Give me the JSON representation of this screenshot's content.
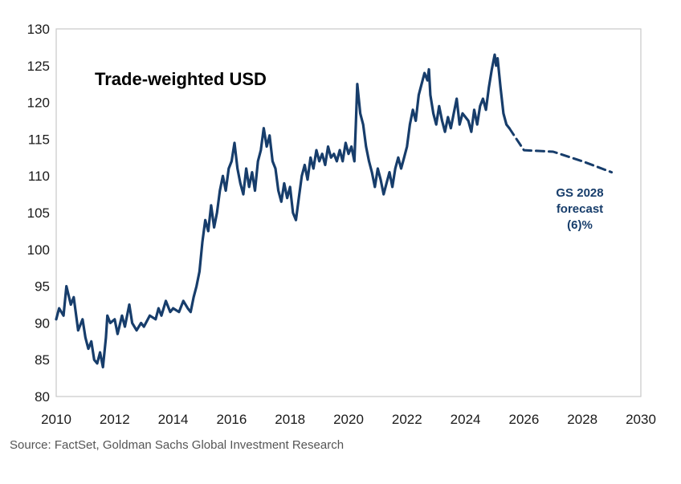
{
  "chart_data": {
    "type": "line",
    "title": "Trade-weighted USD",
    "xlim": [
      2010,
      2030
    ],
    "ylim": [
      80,
      130
    ],
    "x_ticks": [
      2010,
      2012,
      2014,
      2016,
      2018,
      2020,
      2022,
      2024,
      2026,
      2028,
      2030
    ],
    "y_ticks": [
      80,
      85,
      90,
      95,
      100,
      105,
      110,
      115,
      120,
      125,
      130
    ],
    "grid": false,
    "legend": "none",
    "annotation": [
      "GS 2028",
      "forecast",
      "(6)%"
    ],
    "series": [
      {
        "style": "solid",
        "color": "#173d6b",
        "x": [
          2010.0,
          2010.1,
          2010.25,
          2010.35,
          2010.5,
          2010.6,
          2010.75,
          2010.9,
          2011.0,
          2011.1,
          2011.2,
          2011.3,
          2011.4,
          2011.5,
          2011.6,
          2011.7,
          2011.75,
          2011.85,
          2012.0,
          2012.1,
          2012.25,
          2012.35,
          2012.5,
          2012.6,
          2012.75,
          2012.9,
          2013.0,
          2013.2,
          2013.4,
          2013.5,
          2013.6,
          2013.75,
          2013.9,
          2014.0,
          2014.2,
          2014.35,
          2014.5,
          2014.6,
          2014.7,
          2014.8,
          2014.9,
          2015.0,
          2015.1,
          2015.2,
          2015.3,
          2015.4,
          2015.5,
          2015.6,
          2015.7,
          2015.8,
          2015.9,
          2016.0,
          2016.1,
          2016.2,
          2016.3,
          2016.4,
          2016.5,
          2016.6,
          2016.7,
          2016.8,
          2016.9,
          2017.0,
          2017.1,
          2017.2,
          2017.3,
          2017.4,
          2017.5,
          2017.6,
          2017.7,
          2017.8,
          2017.9,
          2018.0,
          2018.1,
          2018.2,
          2018.3,
          2018.4,
          2018.5,
          2018.6,
          2018.7,
          2018.8,
          2018.9,
          2019.0,
          2019.1,
          2019.2,
          2019.3,
          2019.4,
          2019.5,
          2019.6,
          2019.7,
          2019.8,
          2019.9,
          2020.0,
          2020.1,
          2020.2,
          2020.25,
          2020.3,
          2020.4,
          2020.5,
          2020.6,
          2020.7,
          2020.8,
          2020.9,
          2021.0,
          2021.1,
          2021.2,
          2021.3,
          2021.4,
          2021.5,
          2021.6,
          2021.7,
          2021.8,
          2021.9,
          2022.0,
          2022.1,
          2022.2,
          2022.3,
          2022.4,
          2022.5,
          2022.6,
          2022.7,
          2022.75,
          2022.8,
          2022.9,
          2023.0,
          2023.1,
          2023.2,
          2023.3,
          2023.4,
          2023.5,
          2023.6,
          2023.7,
          2023.8,
          2023.9,
          2024.0,
          2024.1,
          2024.2,
          2024.3,
          2024.4,
          2024.5,
          2024.6,
          2024.7,
          2024.8,
          2024.9,
          2025.0,
          2025.05,
          2025.1,
          2025.2,
          2025.3,
          2025.4,
          2025.5
        ],
        "y": [
          90.5,
          92.0,
          91.0,
          95.0,
          92.5,
          93.5,
          89.0,
          90.5,
          88.0,
          86.5,
          87.5,
          85.0,
          84.5,
          86.0,
          84.0,
          88.0,
          91.0,
          90.0,
          90.5,
          88.5,
          91.0,
          89.5,
          92.5,
          90.0,
          89.0,
          90.0,
          89.5,
          91.0,
          90.5,
          92.0,
          91.0,
          93.0,
          91.5,
          92.0,
          91.5,
          93.0,
          92.0,
          91.5,
          93.5,
          95.0,
          97.0,
          101.0,
          104.0,
          102.5,
          106.0,
          103.0,
          105.0,
          108.0,
          110.0,
          108.0,
          111.0,
          112.0,
          114.5,
          111.0,
          109.0,
          107.5,
          111.0,
          108.5,
          110.5,
          108.0,
          112.0,
          113.5,
          116.5,
          114.0,
          115.5,
          112.0,
          111.0,
          108.0,
          106.5,
          109.0,
          107.0,
          108.5,
          105.0,
          104.0,
          107.0,
          110.0,
          111.5,
          109.5,
          112.5,
          111.0,
          113.5,
          112.0,
          113.0,
          111.5,
          114.0,
          112.5,
          113.0,
          112.0,
          113.5,
          112.0,
          114.5,
          113.0,
          114.0,
          112.0,
          117.0,
          122.5,
          118.5,
          117.0,
          114.0,
          112.0,
          110.5,
          108.5,
          111.0,
          109.5,
          107.5,
          109.0,
          110.5,
          108.5,
          111.0,
          112.5,
          111.0,
          112.5,
          114.0,
          117.0,
          119.0,
          117.5,
          121.0,
          122.5,
          124.0,
          123.0,
          124.5,
          121.0,
          118.5,
          117.0,
          119.5,
          117.5,
          116.0,
          118.0,
          116.5,
          118.5,
          120.5,
          117.0,
          118.5,
          118.0,
          117.5,
          116.0,
          119.0,
          117.0,
          119.5,
          120.5,
          119.0,
          122.0,
          124.5,
          126.5,
          125.0,
          126.0,
          122.0,
          118.5,
          117.0,
          116.5
        ]
      },
      {
        "style": "dashed",
        "color": "#173d6b",
        "x": [
          2025.5,
          2026.0,
          2027.0,
          2028.0,
          2029.0
        ],
        "y": [
          116.5,
          113.5,
          113.3,
          112.0,
          110.5
        ]
      }
    ],
    "source": "Source: FactSet, Goldman Sachs Global Investment Research"
  }
}
